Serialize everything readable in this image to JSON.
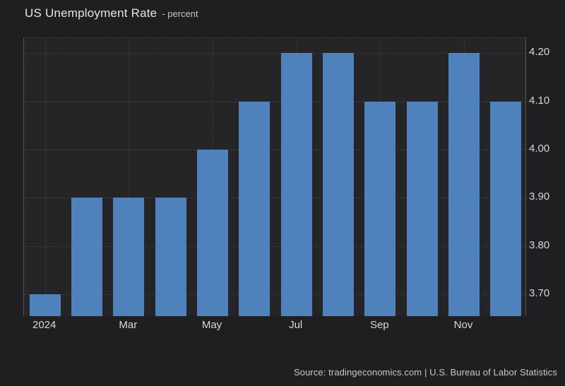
{
  "header": {
    "title": "US Unemployment Rate",
    "subtitle": "- percent"
  },
  "footer": {
    "source": "Source: tradingeconomics.com | U.S. Bureau of Labor Statistics"
  },
  "colors": {
    "background": "#1f1f22",
    "plot_background": "#252528",
    "bar": "#4f81bd",
    "grid": "#434347",
    "axis_border": "#56565a",
    "tick_label": "#d9d9d9",
    "title": "#e4e4e4"
  },
  "chart_data": {
    "type": "bar",
    "title": "US Unemployment Rate",
    "subtitle": "- percent",
    "ylabel": "percent",
    "categories": [
      "Jan 2024",
      "Feb 2024",
      "Mar 2024",
      "Apr 2024",
      "May 2024",
      "Jun 2024",
      "Jul 2024",
      "Aug 2024",
      "Sep 2024",
      "Oct 2024",
      "Nov 2024",
      "Dec 2024"
    ],
    "values": [
      3.7,
      3.9,
      3.9,
      3.9,
      4.0,
      4.1,
      4.2,
      4.2,
      4.1,
      4.1,
      4.2,
      4.1
    ],
    "x_tick_labels": [
      "2024",
      "Mar",
      "May",
      "Jul",
      "Sep",
      "Nov"
    ],
    "x_tick_month_indices": [
      0,
      2,
      4,
      6,
      8,
      10
    ],
    "y_tick_labels": [
      "4.20",
      "4.10",
      "4.00",
      "3.90",
      "3.80",
      "3.70"
    ],
    "y_tick_values": [
      4.2,
      4.1,
      4.0,
      3.9,
      3.8,
      3.7
    ],
    "ylim": [
      3.655,
      4.231
    ],
    "grid": true,
    "legend": false,
    "y_axis_side": "right",
    "bar_color": "#4f81bd"
  }
}
